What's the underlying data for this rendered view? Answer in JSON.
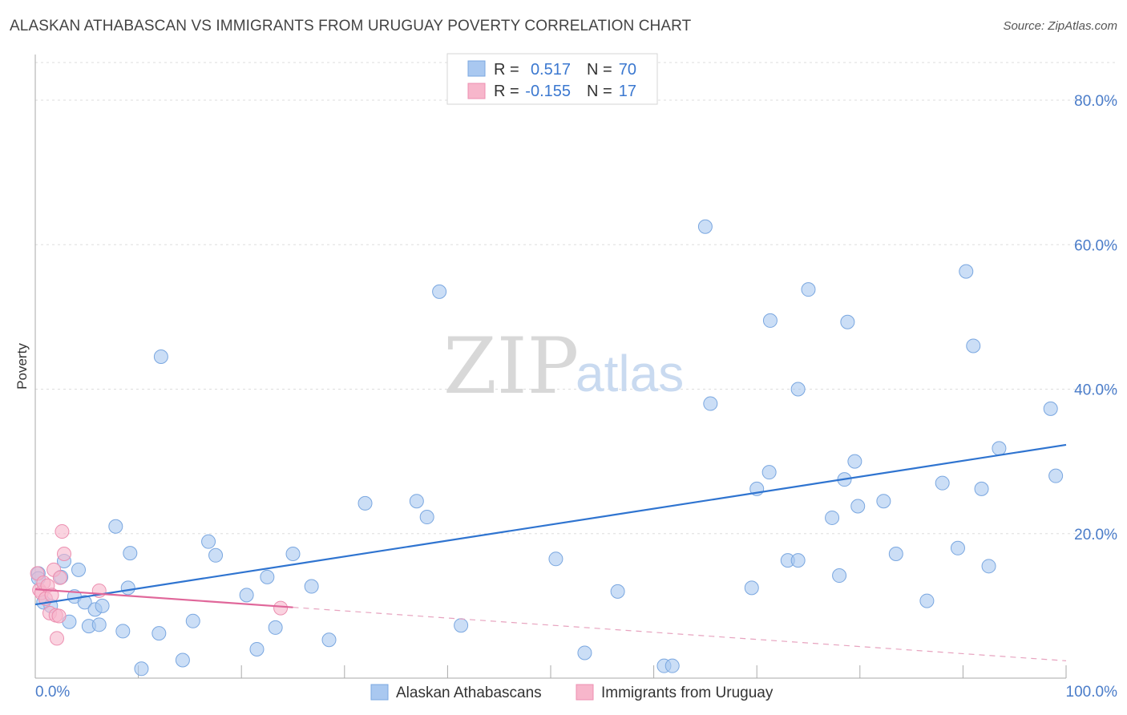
{
  "header": {
    "title": "ALASKAN ATHABASCAN VS IMMIGRANTS FROM URUGUAY POVERTY CORRELATION CHART",
    "source": "Source: ZipAtlas.com"
  },
  "watermark": {
    "zip": "ZIP",
    "atlas": "atlas"
  },
  "colors": {
    "blue_fill": "#a9c8f0",
    "blue_stroke": "#7aa7e0",
    "blue_line": "#2f74d0",
    "pink_fill": "#f7b6cb",
    "pink_stroke": "#ec8fb0",
    "pink_line": "#e0679a",
    "grid": "#dddddd",
    "axis_text": "#4a7cc9"
  },
  "chart_data": {
    "type": "scatter",
    "title": "ALASKAN ATHABASCAN VS IMMIGRANTS FROM URUGUAY POVERTY CORRELATION CHART",
    "ylabel": "Poverty",
    "xlabel": "",
    "xlim": [
      0,
      100
    ],
    "ylim": [
      0,
      85
    ],
    "y_ticks": [
      20,
      40,
      60,
      80
    ],
    "y_tick_labels": [
      "20.0%",
      "40.0%",
      "60.0%",
      "80.0%"
    ],
    "x_tick_labels": [
      "0.0%",
      "100.0%"
    ],
    "grid": true,
    "legend": {
      "position": "top-center",
      "rows": [
        {
          "r_label": "R =",
          "r_value": "0.517",
          "n_label": "N =",
          "n_value": "70"
        },
        {
          "r_label": "R =",
          "r_value": "-0.155",
          "n_label": "N =",
          "n_value": "17"
        }
      ]
    },
    "series": [
      {
        "name": "Alaskan Athabascans",
        "color": "#a9c8f0",
        "points": [
          [
            0.3,
            14.5
          ],
          [
            0.8,
            10.5
          ],
          [
            1.5,
            10.0
          ],
          [
            2.5,
            14.0
          ],
          [
            2.8,
            16.2
          ],
          [
            3.3,
            7.8
          ],
          [
            3.8,
            11.3
          ],
          [
            4.2,
            15.0
          ],
          [
            4.8,
            10.5
          ],
          [
            5.2,
            7.2
          ],
          [
            5.8,
            9.5
          ],
          [
            6.2,
            7.4
          ],
          [
            6.5,
            10.0
          ],
          [
            7.8,
            21.0
          ],
          [
            8.5,
            6.5
          ],
          [
            9.0,
            12.5
          ],
          [
            9.2,
            17.3
          ],
          [
            10.3,
            1.3
          ],
          [
            12.0,
            6.2
          ],
          [
            12.2,
            44.5
          ],
          [
            14.3,
            2.5
          ],
          [
            15.3,
            7.9
          ],
          [
            16.8,
            18.9
          ],
          [
            17.5,
            17.0
          ],
          [
            20.5,
            11.5
          ],
          [
            21.5,
            4.0
          ],
          [
            22.5,
            14.0
          ],
          [
            23.3,
            7.0
          ],
          [
            25.0,
            17.2
          ],
          [
            26.8,
            12.7
          ],
          [
            28.5,
            5.3
          ],
          [
            32.0,
            24.2
          ],
          [
            37.0,
            24.5
          ],
          [
            38.0,
            22.3
          ],
          [
            39.2,
            53.5
          ],
          [
            41.3,
            7.3
          ],
          [
            50.5,
            16.5
          ],
          [
            53.3,
            3.5
          ],
          [
            56.5,
            12.0
          ],
          [
            61.0,
            1.7
          ],
          [
            61.8,
            1.7
          ],
          [
            65.0,
            62.5
          ],
          [
            65.5,
            38.0
          ],
          [
            69.5,
            12.5
          ],
          [
            70.0,
            26.2
          ],
          [
            71.2,
            28.5
          ],
          [
            71.3,
            49.5
          ],
          [
            73.0,
            16.3
          ],
          [
            74.0,
            16.3
          ],
          [
            74.0,
            40.0
          ],
          [
            75.0,
            53.8
          ],
          [
            77.3,
            22.2
          ],
          [
            78.0,
            14.2
          ],
          [
            78.5,
            27.5
          ],
          [
            78.8,
            49.3
          ],
          [
            79.5,
            30.0
          ],
          [
            79.8,
            23.8
          ],
          [
            82.3,
            24.5
          ],
          [
            83.5,
            17.2
          ],
          [
            86.5,
            10.7
          ],
          [
            88.0,
            27.0
          ],
          [
            89.5,
            18.0
          ],
          [
            90.3,
            56.3
          ],
          [
            91.0,
            46.0
          ],
          [
            91.8,
            26.2
          ],
          [
            92.5,
            15.5
          ],
          [
            93.5,
            31.8
          ],
          [
            98.5,
            37.3
          ],
          [
            99.0,
            28.0
          ],
          [
            0.3,
            13.8
          ]
        ],
        "trend": {
          "x": [
            0,
            100
          ],
          "y": [
            10.2,
            32.3
          ],
          "r": 0.517,
          "n": 70
        }
      },
      {
        "name": "Immigrants from Uruguay",
        "color": "#f7b6cb",
        "points": [
          [
            0.2,
            14.5
          ],
          [
            0.4,
            12.2
          ],
          [
            0.6,
            11.8
          ],
          [
            0.8,
            13.2
          ],
          [
            1.0,
            11.0
          ],
          [
            1.2,
            12.8
          ],
          [
            1.4,
            9.0
          ],
          [
            1.6,
            11.5
          ],
          [
            1.8,
            15.0
          ],
          [
            2.0,
            8.7
          ],
          [
            2.1,
            5.5
          ],
          [
            2.3,
            8.6
          ],
          [
            2.4,
            13.9
          ],
          [
            2.6,
            20.3
          ],
          [
            2.8,
            17.2
          ],
          [
            6.2,
            12.1
          ],
          [
            23.8,
            9.7
          ]
        ],
        "trend": {
          "x": [
            0,
            25
          ],
          "y": [
            12.3,
            9.8
          ],
          "x_dashed": [
            25,
            100
          ],
          "y_dashed": [
            9.8,
            2.4
          ],
          "r": -0.155,
          "n": 17
        }
      }
    ]
  }
}
